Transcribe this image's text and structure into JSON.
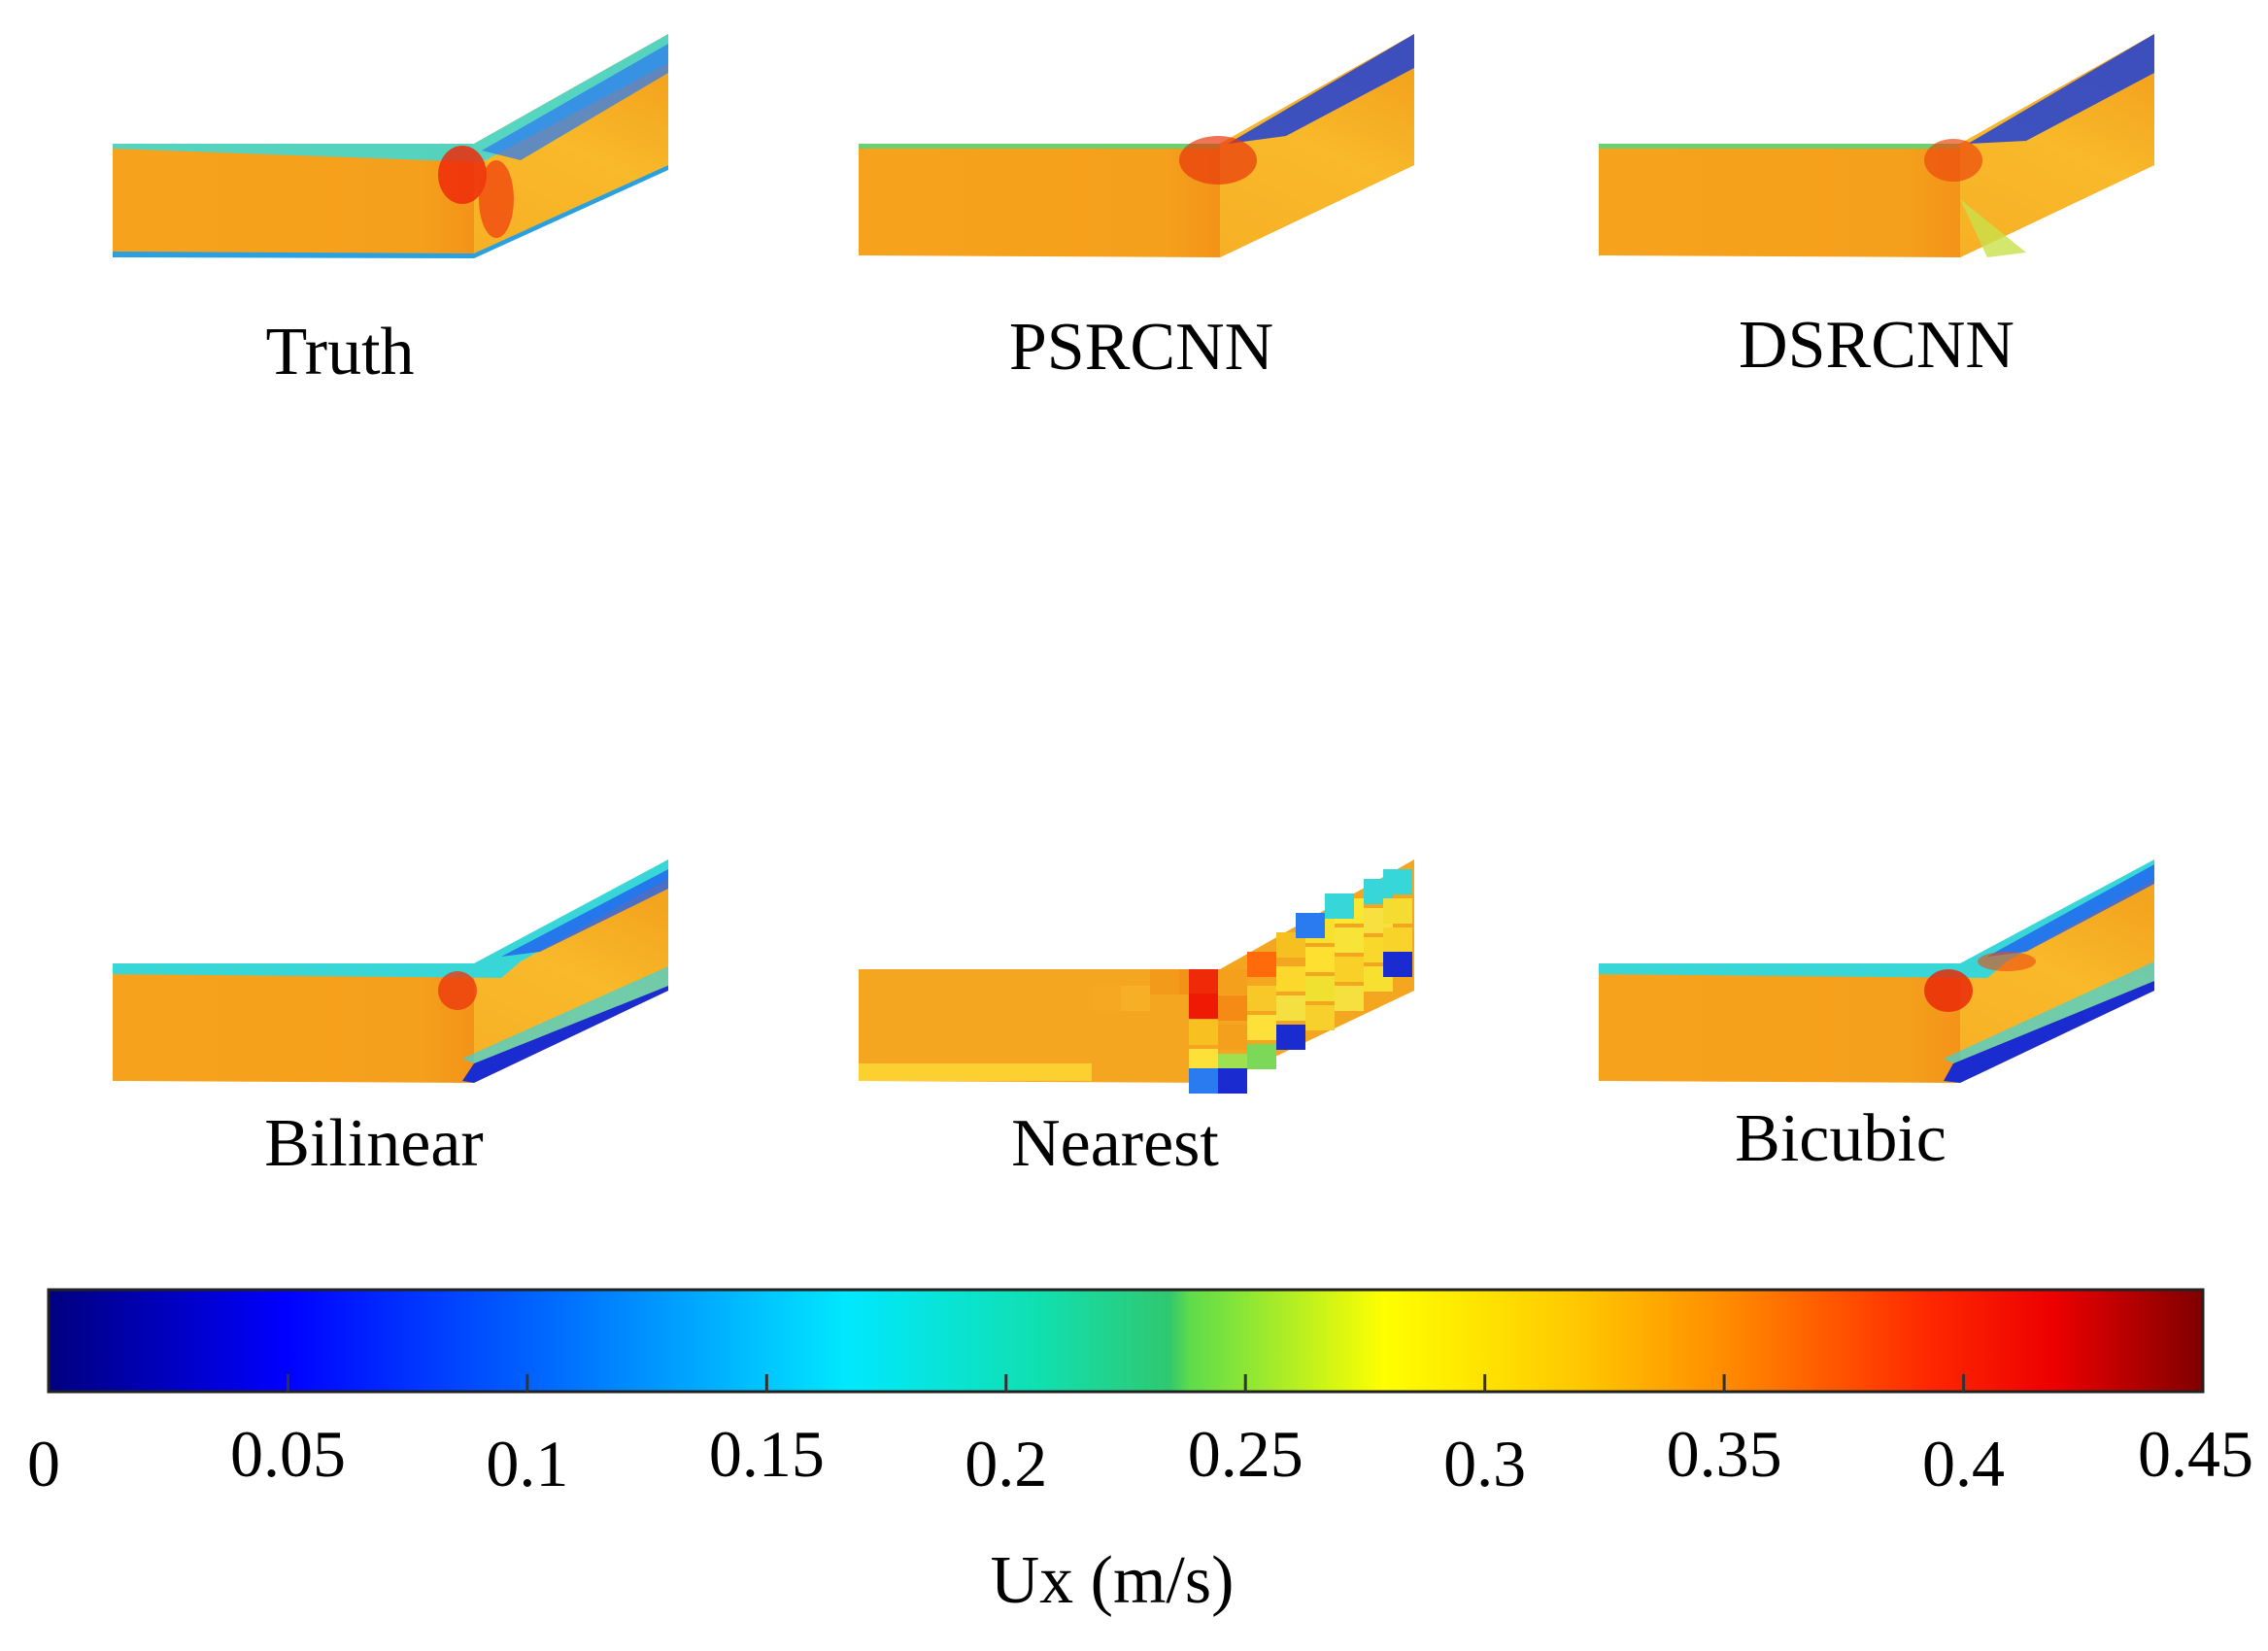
{
  "panels": [
    {
      "id": "truth",
      "label": "Truth"
    },
    {
      "id": "psrcnn",
      "label": "PSRCNN"
    },
    {
      "id": "dsrcnn",
      "label": "DSRCNN"
    },
    {
      "id": "bilinear",
      "label": "Bilinear"
    },
    {
      "id": "nearest",
      "label": "Nearest"
    },
    {
      "id": "bicubic",
      "label": "Bicubic"
    }
  ],
  "colorbar": {
    "title": "Ux (m/s)",
    "min": 0,
    "max": 0.45,
    "colormap": "jet",
    "ticks": [
      "0",
      "0.05",
      "0.1",
      "0.15",
      "0.2",
      "0.25",
      "0.3",
      "0.35",
      "0.4",
      "0.45"
    ]
  }
}
